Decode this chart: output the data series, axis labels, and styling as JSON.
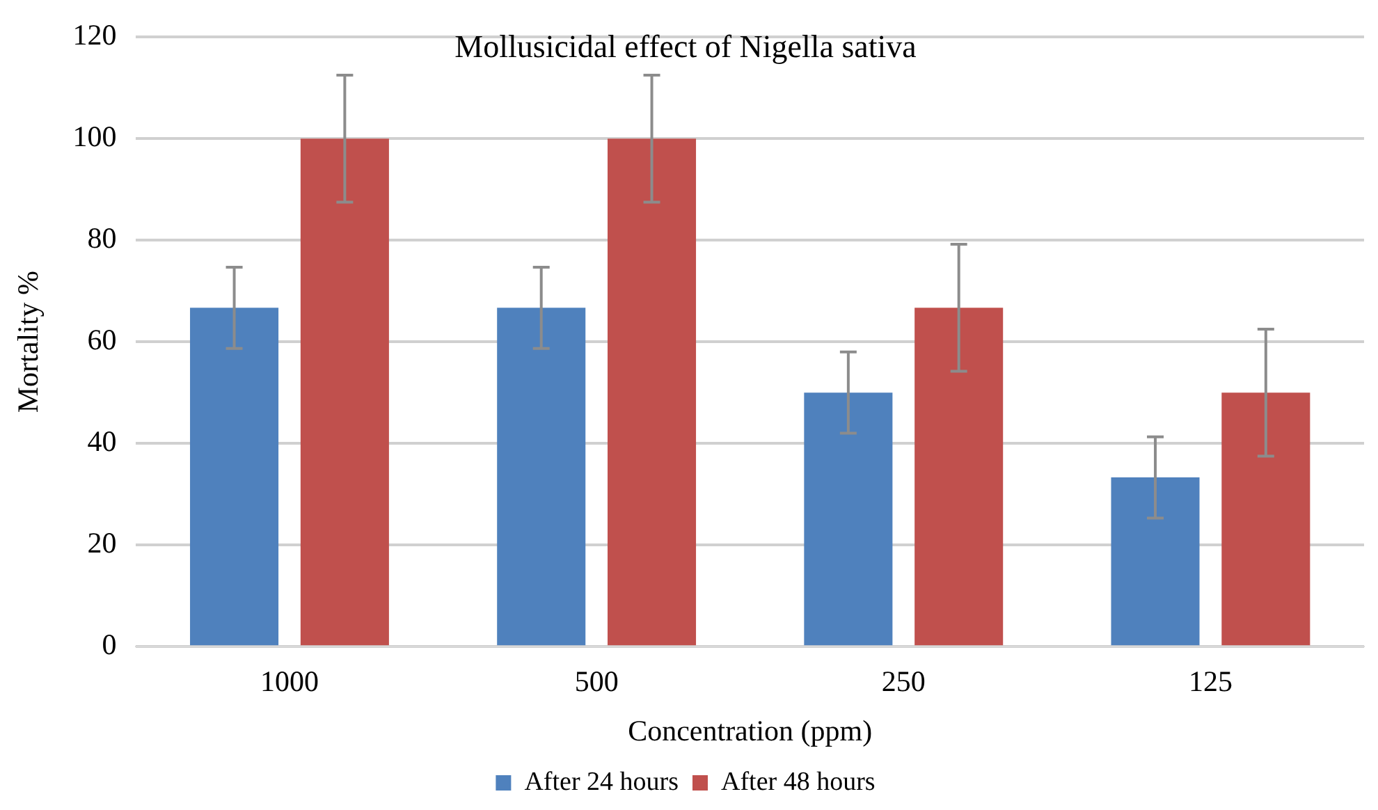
{
  "chart_data": {
    "type": "bar",
    "title": "Mollusicidal effect of Nigella sativa",
    "xlabel": "Concentration (ppm)",
    "ylabel": "Mortality %",
    "categories": [
      "1000",
      "500",
      "250",
      "125"
    ],
    "series": [
      {
        "name": "After 24 hours",
        "color": "#4f81bd",
        "values": [
          66.7,
          66.7,
          50,
          33.3
        ],
        "errors": [
          8,
          8,
          8,
          8
        ]
      },
      {
        "name": "After 48 hours",
        "color": "#c0504d",
        "values": [
          100,
          100,
          66.7,
          50
        ],
        "errors": [
          12.5,
          12.5,
          12.5,
          12.5
        ]
      }
    ],
    "ylim": [
      0,
      120
    ],
    "yticks": [
      0,
      20,
      40,
      60,
      80,
      100,
      120
    ],
    "grid": "y",
    "legend": "bottom"
  }
}
